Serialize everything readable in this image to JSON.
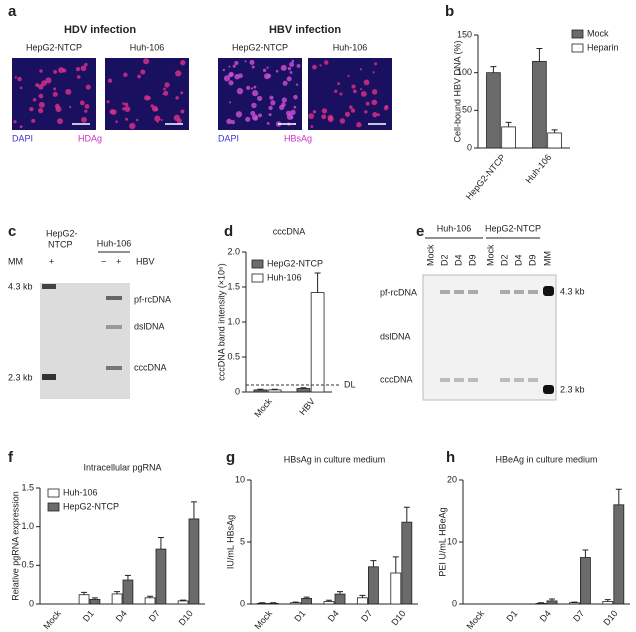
{
  "panel_labels": [
    "a",
    "b",
    "c",
    "d",
    "e",
    "f",
    "g",
    "h"
  ],
  "panel_a": {
    "groups": [
      {
        "title": "HDV infection",
        "images": [
          "HepG2-NTCP",
          "Huh-106"
        ],
        "stains": [
          "DAPI",
          "HDAg"
        ]
      },
      {
        "title": "HBV infection",
        "images": [
          "HepG2-NTCP",
          "Huh-106"
        ],
        "stains": [
          "DAPI",
          "HBsAg"
        ]
      }
    ]
  },
  "panel_c": {
    "samples": [
      [
        "HepG2-",
        "NTCP"
      ],
      "Huh-106"
    ],
    "lane_row": [
      "MM",
      "+",
      "−",
      "+",
      "HBV"
    ],
    "markers": [
      "4.3 kb",
      "2.3 kb"
    ],
    "bands": [
      "pf-rcDNA",
      "dslDNA",
      "cccDNA"
    ]
  },
  "panel_e": {
    "samples": [
      "Huh-106",
      "HepG2-NTCP"
    ],
    "lanes": [
      "Mock",
      "D2",
      "D4",
      "D9",
      "Mock",
      "D2",
      "D4",
      "D9",
      "MM"
    ],
    "bands": [
      "pf-rcDNA",
      "dslDNA",
      "cccDNA"
    ],
    "markers": [
      "4.3 kb",
      "2.3 kb"
    ]
  },
  "chart_data": [
    {
      "type": "bar",
      "y_label": "Cell-bound HBV DNA (%)",
      "categories": [
        "HepG2-NTCP",
        "Huh-106"
      ],
      "series": [
        {
          "name": "Mock",
          "color": "#6b6b6b",
          "values": [
            100,
            115
          ],
          "errors": [
            8,
            17
          ]
        },
        {
          "name": "Heparin",
          "color": "#ffffff",
          "values": [
            28,
            20
          ],
          "errors": [
            6,
            4
          ]
        }
      ],
      "ylim": [
        0,
        150
      ],
      "yticks": [
        0,
        50,
        100,
        150
      ],
      "legend": "upper right"
    },
    {
      "type": "bar",
      "title": "cccDNA",
      "y_label": "cccDNA band intensity (×10⁶)",
      "categories": [
        "Mock",
        "HBV"
      ],
      "series": [
        {
          "name": "HepG2-NTCP",
          "color": "#6b6b6b",
          "values": [
            0.03,
            0.05
          ],
          "errors": [
            0.01,
            0.01
          ]
        },
        {
          "name": "Huh-106",
          "color": "#ffffff",
          "values": [
            0.03,
            1.42
          ],
          "errors": [
            0.01,
            0.28
          ]
        }
      ],
      "ylim": [
        0,
        2
      ],
      "yticks": [
        0,
        0.5,
        {
          "value": 1,
          "label": "1.0"
        },
        1.5,
        {
          "value": 2,
          "label": "2.0"
        }
      ],
      "reference_line": {
        "value": 0.1,
        "label": "DL"
      },
      "legend": "upper left"
    },
    {
      "type": "bar",
      "title": "Intracellular pgRNA",
      "y_label": "Relative pgRNA expression",
      "categories": [
        "Mock",
        "D1",
        "D4",
        "D7",
        "D10"
      ],
      "series": [
        {
          "name": "Huh-106",
          "color": "#ffffff",
          "values": [
            0,
            0.12,
            0.13,
            0.08,
            0.04
          ],
          "errors": [
            0,
            0.03,
            0.03,
            0.02,
            0.01
          ]
        },
        {
          "name": "HepG2-NTCP",
          "color": "#6b6b6b",
          "values": [
            0,
            0.06,
            0.31,
            0.71,
            1.1
          ],
          "errors": [
            0,
            0.02,
            0.06,
            0.15,
            0.22
          ]
        }
      ],
      "ylim": [
        0,
        1.5
      ],
      "yticks": [
        0,
        0.5,
        {
          "value": 1,
          "label": "1.0"
        },
        1.5
      ],
      "legend": "upper left"
    },
    {
      "type": "bar",
      "title": "HBsAg in culture medium",
      "y_label": "IU/mL HBsAg",
      "categories": [
        "Mock",
        "D1",
        "D4",
        "D7",
        "D10"
      ],
      "series": [
        {
          "color": "#ffffff",
          "values": [
            0.05,
            0.1,
            0.2,
            0.5,
            2.5
          ],
          "errors": [
            0.05,
            0.05,
            0.1,
            0.2,
            1.3
          ]
        },
        {
          "color": "#6b6b6b",
          "values": [
            0.05,
            0.45,
            0.8,
            3.0,
            6.6
          ],
          "errors": [
            0.05,
            0.1,
            0.2,
            0.5,
            1.2
          ]
        }
      ],
      "ylim": [
        0,
        10
      ],
      "yticks": [
        0,
        5,
        10
      ]
    },
    {
      "type": "bar",
      "title": "HBeAg in culture medium",
      "y_label": "PEI U/mL HBeAg",
      "categories": [
        "Mock",
        "D1",
        "D4",
        "D7",
        "D10"
      ],
      "series": [
        {
          "color": "#ffffff",
          "values": [
            0,
            0,
            0.1,
            0.2,
            0.4
          ],
          "errors": [
            0,
            0,
            0.1,
            0.1,
            0.3
          ]
        },
        {
          "color": "#6b6b6b",
          "values": [
            0,
            0,
            0.5,
            7.5,
            16
          ],
          "errors": [
            0,
            0,
            0.3,
            1.2,
            2.5
          ]
        }
      ],
      "ylim": [
        0,
        20
      ],
      "yticks": [
        0,
        10,
        20
      ]
    }
  ]
}
